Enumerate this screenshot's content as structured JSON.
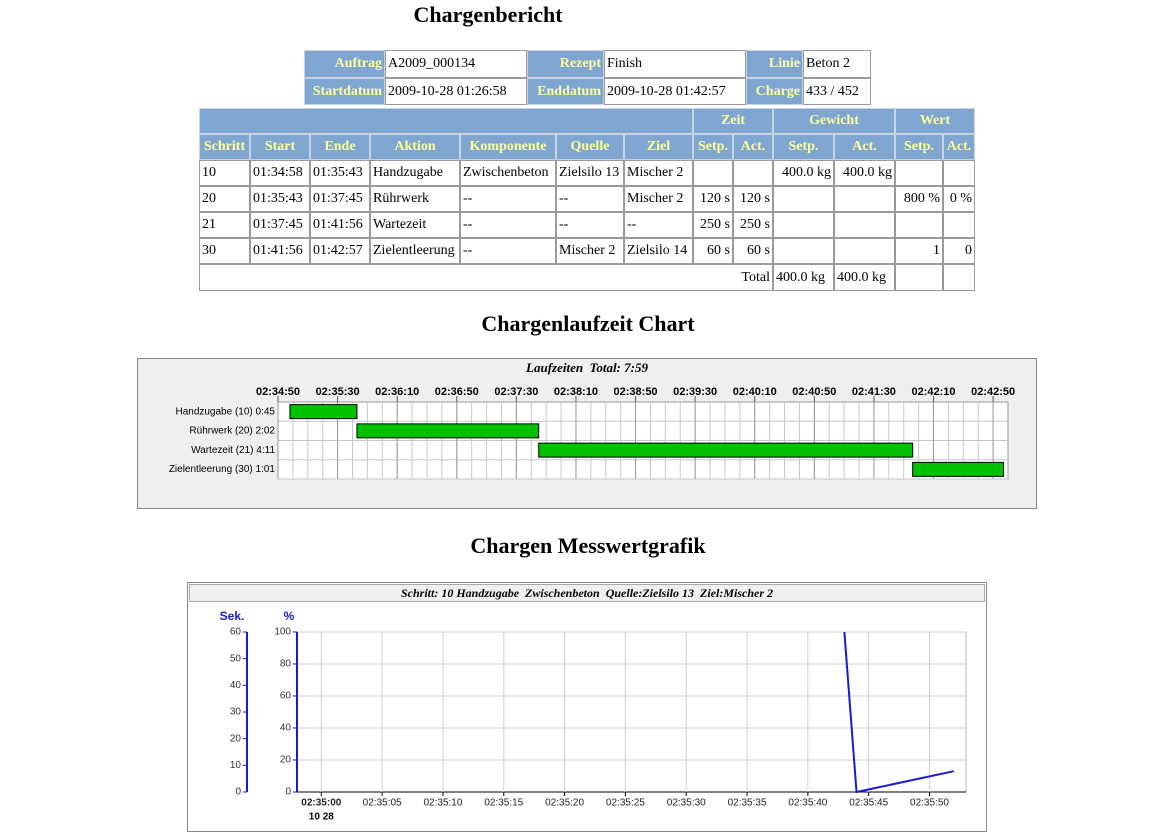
{
  "title": "Chargenbericht",
  "header": {
    "rows": [
      [
        "Auftrag",
        "A2009_000134",
        "Rezept",
        "Finish",
        "Linie",
        "Beton 2"
      ],
      [
        "Startdatum",
        "2009-10-28 01:26:58",
        "Enddatum",
        "2009-10-28 01:42:57",
        "Charge",
        "433 / 452"
      ]
    ]
  },
  "steps": {
    "groups": [
      "Zeit",
      "Gewicht",
      "Wert"
    ],
    "columns": [
      "Schritt",
      "Start",
      "Ende",
      "Aktion",
      "Komponente",
      "Quelle",
      "Ziel",
      "Setp.",
      "Act.",
      "Setp.",
      "Act.",
      "Setp.",
      "Act."
    ],
    "rows": [
      [
        "10",
        "01:34:58",
        "01:35:43",
        "Handzugabe",
        "Zwischenbeton",
        "Zielsilo 13",
        "Mischer 2",
        null,
        null,
        "400.0 kg",
        "400.0 kg",
        null,
        null
      ],
      [
        "20",
        "01:35:43",
        "01:37:45",
        "Rührwerk",
        "--",
        "--",
        "Mischer 2",
        "120 s",
        "120 s",
        null,
        null,
        "800 %",
        "0 %"
      ],
      [
        "21",
        "01:37:45",
        "01:41:56",
        "Wartezeit",
        "--",
        "--",
        "--",
        "250 s",
        "250 s",
        null,
        null,
        null,
        null
      ],
      [
        "30",
        "01:41:56",
        "01:42:57",
        "Zielentleerung",
        "--",
        "Mischer 2",
        "Zielsilo 14",
        "60 s",
        "60 s",
        null,
        null,
        "1",
        "0"
      ]
    ],
    "total": {
      "label": "Total",
      "values": [
        "400.0 kg",
        "400.0 kg"
      ]
    }
  },
  "chart_data": [
    {
      "type": "gantt",
      "section_title": "Chargenlaufzeit Chart",
      "title": "Laufzeiten  Total: 7:59",
      "tasks": [
        {
          "label": "Handzugabe (10) 0:45",
          "start": "02:34:58",
          "end": "02:35:43"
        },
        {
          "label": "Rührwerk (20) 2:02",
          "start": "02:35:43",
          "end": "02:37:45"
        },
        {
          "label": "Wartezeit (21) 4:11",
          "start": "02:37:45",
          "end": "02:41:56"
        },
        {
          "label": "Zielentleerung (30) 1:01",
          "start": "02:41:56",
          "end": "02:42:57"
        }
      ],
      "color": "#00c000",
      "xlim": [
        "02:34:50",
        "02:43:00"
      ],
      "xticks": [
        "02:34:50",
        "02:35:30",
        "02:36:10",
        "02:36:50",
        "02:37:30",
        "02:38:10",
        "02:38:50",
        "02:39:30",
        "02:40:10",
        "02:40:50",
        "02:41:30",
        "02:42:10",
        "02:42:50"
      ],
      "grid": true
    },
    {
      "type": "line",
      "section_title": "Chargen Messwertgrafik",
      "title": "Schritt: 10 Handzugabe  Zwischenbeton  Quelle:Zielsilo 13  Ziel:Mischer 2",
      "x": [
        "02:35:43",
        "02:35:44",
        "02:35:52"
      ],
      "values": [
        100,
        0,
        13
      ],
      "color": "#1a1ad0",
      "xlim": [
        "02:34:58",
        "02:35:53"
      ],
      "xticks": [
        "02:35:00",
        "02:35:05",
        "02:35:10",
        "02:35:15",
        "02:35:20",
        "02:35:25",
        "02:35:30",
        "02:35:35",
        "02:35:40",
        "02:35:45",
        "02:35:50"
      ],
      "xdate": "10 28",
      "ylabel": "%",
      "ylim": [
        0,
        100
      ],
      "yticks": [
        0,
        20,
        40,
        60,
        80,
        100
      ],
      "y2label": "Sek.",
      "y2lim": [
        0,
        60
      ],
      "y2ticks": [
        0,
        10,
        20,
        30,
        40,
        50,
        60
      ],
      "grid": true
    }
  ]
}
